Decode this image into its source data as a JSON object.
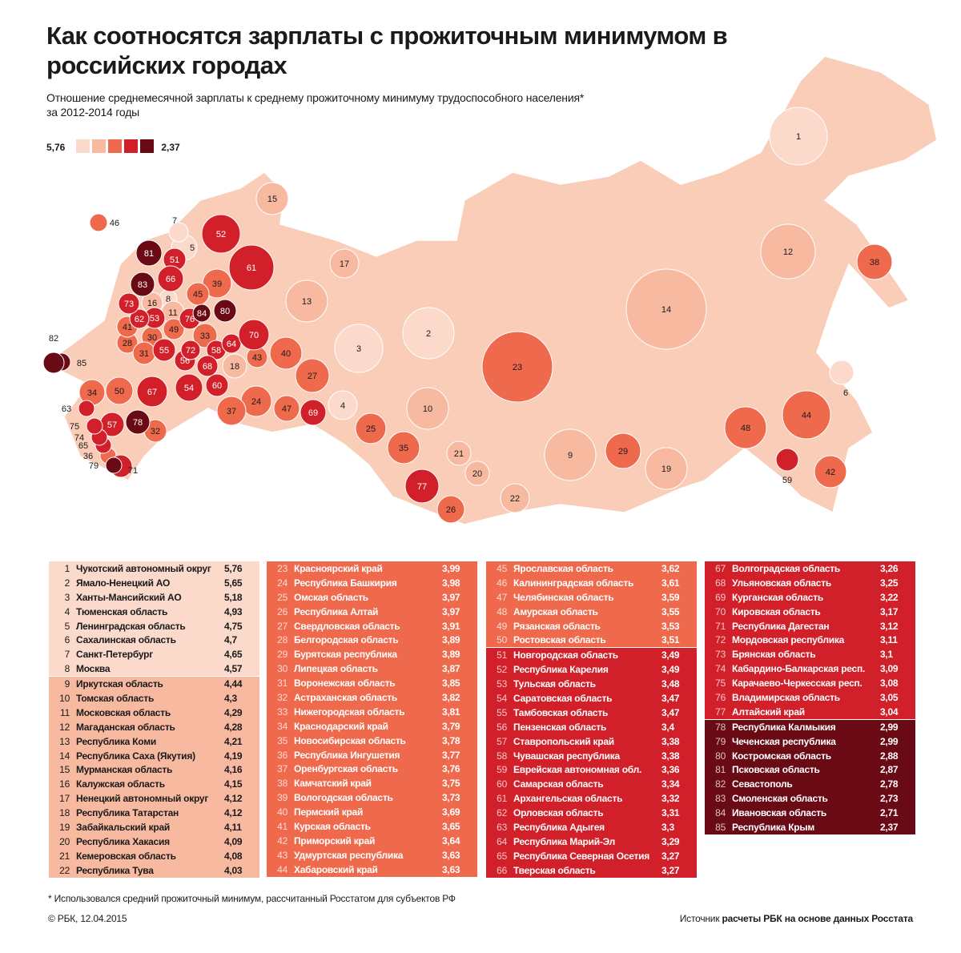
{
  "header": {
    "title": "Как соотносятся зарплаты с прожиточным минимумом в российских городах",
    "subtitle_line1": "Отношение среднемесячной зарплаты к среднему прожиточному минимуму трудоспособного населения*",
    "subtitle_line2": "за 2012-2014 годы"
  },
  "legend": {
    "high_label": "5,76",
    "low_label": "2,37",
    "colors": [
      "#fbdacb",
      "#f8b9a1",
      "#ef6a4d",
      "#d2202a",
      "#6a0a14"
    ]
  },
  "map": {
    "land_color": "#f9cdb8",
    "label_text_light": "#ffffff",
    "label_text_dark": "#1a1a1a",
    "outer_labels": [
      "82",
      "85",
      "63",
      "75",
      "74",
      "65",
      "36",
      "79",
      "71",
      "46",
      "7",
      "5",
      "59",
      "6"
    ]
  },
  "regions": [
    {
      "n": "1",
      "name": "Чукотский автономный округ",
      "value": "5,76"
    },
    {
      "n": "2",
      "name": "Ямало-Ненецкий АО",
      "value": "5,65"
    },
    {
      "n": "3",
      "name": "Ханты-Мансийский АО",
      "value": "5,18"
    },
    {
      "n": "4",
      "name": "Тюменская область",
      "value": "4,93"
    },
    {
      "n": "5",
      "name": "Ленинградская область",
      "value": "4,75"
    },
    {
      "n": "6",
      "name": "Сахалинская область",
      "value": "4,7"
    },
    {
      "n": "7",
      "name": "Санкт-Петербург",
      "value": "4,65"
    },
    {
      "n": "8",
      "name": "Москва",
      "value": "4,57"
    },
    {
      "n": "9",
      "name": "Иркутская область",
      "value": "4,44"
    },
    {
      "n": "10",
      "name": "Томская область",
      "value": "4,3"
    },
    {
      "n": "11",
      "name": "Московская область",
      "value": "4,29"
    },
    {
      "n": "12",
      "name": "Магаданская область",
      "value": "4,28"
    },
    {
      "n": "13",
      "name": "Республика Коми",
      "value": "4,21"
    },
    {
      "n": "14",
      "name": "Республика Саха (Якутия)",
      "value": "4,19"
    },
    {
      "n": "15",
      "name": "Мурманская область",
      "value": "4,16"
    },
    {
      "n": "16",
      "name": "Калужская область",
      "value": "4,15"
    },
    {
      "n": "17",
      "name": "Ненецкий автономный округ",
      "value": "4,12"
    },
    {
      "n": "18",
      "name": "Республика Татарстан",
      "value": "4,12"
    },
    {
      "n": "19",
      "name": "Забайкальский край",
      "value": "4,11"
    },
    {
      "n": "20",
      "name": "Республика Хакасия",
      "value": "4,09"
    },
    {
      "n": "21",
      "name": "Кемеровская область",
      "value": "4,08"
    },
    {
      "n": "22",
      "name": "Республика Тува",
      "value": "4,03"
    },
    {
      "n": "23",
      "name": "Красноярский край",
      "value": "3,99"
    },
    {
      "n": "24",
      "name": "Республика Башкирия",
      "value": "3,98"
    },
    {
      "n": "25",
      "name": "Омская область",
      "value": "3,97"
    },
    {
      "n": "26",
      "name": "Республика Алтай",
      "value": "3,97"
    },
    {
      "n": "27",
      "name": "Свердловская область",
      "value": "3,91"
    },
    {
      "n": "28",
      "name": "Белгородская область",
      "value": "3,89"
    },
    {
      "n": "29",
      "name": "Бурятская республика",
      "value": "3,89"
    },
    {
      "n": "30",
      "name": "Липецкая область",
      "value": "3,87"
    },
    {
      "n": "31",
      "name": "Воронежская область",
      "value": "3,85"
    },
    {
      "n": "32",
      "name": "Астраханская область",
      "value": "3,82"
    },
    {
      "n": "33",
      "name": "Нижегородская область",
      "value": "3,81"
    },
    {
      "n": "34",
      "name": "Краснодарский край",
      "value": "3,79"
    },
    {
      "n": "35",
      "name": "Новосибирская область",
      "value": "3,78"
    },
    {
      "n": "36",
      "name": "Республика Ингушетия",
      "value": "3,77"
    },
    {
      "n": "37",
      "name": "Оренбургская область",
      "value": "3,76"
    },
    {
      "n": "38",
      "name": "Камчатский край",
      "value": "3,75"
    },
    {
      "n": "39",
      "name": "Вологодская область",
      "value": "3,73"
    },
    {
      "n": "40",
      "name": "Пермский край",
      "value": "3,69"
    },
    {
      "n": "41",
      "name": "Курская область",
      "value": "3,65"
    },
    {
      "n": "42",
      "name": "Приморский край",
      "value": "3,64"
    },
    {
      "n": "43",
      "name": "Удмуртская республика",
      "value": "3,63"
    },
    {
      "n": "44",
      "name": "Хабаровский край",
      "value": "3,63"
    },
    {
      "n": "45",
      "name": "Ярославская область",
      "value": "3,62"
    },
    {
      "n": "46",
      "name": "Калининградская область",
      "value": "3,61"
    },
    {
      "n": "47",
      "name": "Челябинская область",
      "value": "3,59"
    },
    {
      "n": "48",
      "name": "Амурская область",
      "value": "3,55"
    },
    {
      "n": "49",
      "name": "Рязанская область",
      "value": "3,53"
    },
    {
      "n": "50",
      "name": "Ростовская область",
      "value": "3,51"
    },
    {
      "n": "51",
      "name": "Новгородская область",
      "value": "3,49"
    },
    {
      "n": "52",
      "name": "Республика Карелия",
      "value": "3,49"
    },
    {
      "n": "53",
      "name": "Тульская область",
      "value": "3,48"
    },
    {
      "n": "54",
      "name": "Саратовская область",
      "value": "3,47"
    },
    {
      "n": "55",
      "name": "Тамбовская область",
      "value": "3,47"
    },
    {
      "n": "56",
      "name": "Пензенская область",
      "value": "3,4"
    },
    {
      "n": "57",
      "name": "Ставропольский край",
      "value": "3,38"
    },
    {
      "n": "58",
      "name": "Чувашская республика",
      "value": "3,38"
    },
    {
      "n": "59",
      "name": "Еврейская автономная обл.",
      "value": "3,36"
    },
    {
      "n": "60",
      "name": "Самарская область",
      "value": "3,34"
    },
    {
      "n": "61",
      "name": "Архангельская область",
      "value": "3,32"
    },
    {
      "n": "62",
      "name": "Орловская область",
      "value": "3,31"
    },
    {
      "n": "63",
      "name": "Республика Адыгея",
      "value": "3,3"
    },
    {
      "n": "64",
      "name": "Республика Марий-Эл",
      "value": "3,29"
    },
    {
      "n": "65",
      "name": "Республика Северная Осетия",
      "value": "3,27"
    },
    {
      "n": "66",
      "name": "Тверская область",
      "value": "3,27"
    },
    {
      "n": "67",
      "name": "Волгоградская область",
      "value": "3,26"
    },
    {
      "n": "68",
      "name": "Ульяновская область",
      "value": "3,25"
    },
    {
      "n": "69",
      "name": "Курганская область",
      "value": "3,22"
    },
    {
      "n": "70",
      "name": "Кировская область",
      "value": "3,17"
    },
    {
      "n": "71",
      "name": "Республика Дагестан",
      "value": "3,12"
    },
    {
      "n": "72",
      "name": "Мордовская республика",
      "value": "3,11"
    },
    {
      "n": "73",
      "name": "Брянская область",
      "value": "3,1"
    },
    {
      "n": "74",
      "name": "Кабардино-Балкарская респ.",
      "value": "3,09"
    },
    {
      "n": "75",
      "name": "Карачаево-Черкесская респ.",
      "value": "3,08"
    },
    {
      "n": "76",
      "name": "Владимирская область",
      "value": "3,05"
    },
    {
      "n": "77",
      "name": "Алтайский край",
      "value": "3,04"
    },
    {
      "n": "78",
      "name": "Республика Калмыкия",
      "value": "2,99"
    },
    {
      "n": "79",
      "name": "Чеченская республика",
      "value": "2,99"
    },
    {
      "n": "80",
      "name": "Костромская область",
      "value": "2,88"
    },
    {
      "n": "81",
      "name": "Псковская область",
      "value": "2,87"
    },
    {
      "n": "82",
      "name": "Севастополь",
      "value": "2,78"
    },
    {
      "n": "83",
      "name": "Смоленская область",
      "value": "2,73"
    },
    {
      "n": "84",
      "name": "Ивановская область",
      "value": "2,71"
    },
    {
      "n": "85",
      "name": "Республика Крым",
      "value": "2,37"
    }
  ],
  "footer": {
    "footnote": "* Использовался средний прожиточный минимум, рассчитанный Росстатом для субъектов РФ",
    "copyright": "© РБК, 12.04.2015",
    "source_label": "Источник",
    "source_text": "расчеты РБК на основе данных Росстата"
  }
}
